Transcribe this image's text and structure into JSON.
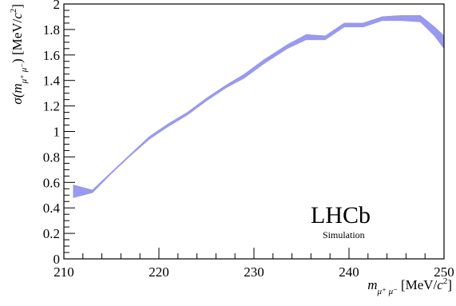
{
  "chart_data": {
    "type": "area",
    "xlim": [
      210,
      250
    ],
    "ylim": [
      0,
      2
    ],
    "x_ticks": [
      "210",
      "220",
      "230",
      "240",
      "250"
    ],
    "y_ticks": [
      "0",
      "0.2",
      "0.4",
      "0.6",
      "0.8",
      "1",
      "1.2",
      "1.4",
      "1.6",
      "1.8",
      "2"
    ],
    "xlabel": {
      "prefix": "m",
      "sub": "μ⁺ μ⁻",
      "unit_open": "[MeV/",
      "unit_base": "c",
      "unit_exp": "2",
      "unit_close": "]"
    },
    "ylabel": {
      "prefix": "σ(m",
      "sub": "μ⁺ μ⁻",
      "close": ") [MeV/",
      "unit_base": "c",
      "unit_exp": "2",
      "unit_close": "]"
    },
    "watermark": {
      "title": "LHCb",
      "subtitle": "Simulation"
    },
    "band_color": "#9999ee",
    "series": [
      {
        "x": [
          211,
          213,
          215,
          217,
          219,
          221,
          223,
          225,
          227,
          229,
          231,
          233.5,
          235.5,
          237.5,
          239.5,
          241.5,
          243.5,
          245.5,
          247.5,
          249,
          250
        ],
        "lower": [
          0.48,
          0.52,
          0.67,
          0.81,
          0.94,
          1.04,
          1.13,
          1.24,
          1.34,
          1.42,
          1.53,
          1.65,
          1.72,
          1.72,
          1.82,
          1.82,
          1.87,
          1.87,
          1.86,
          1.75,
          1.65
        ],
        "upper": [
          0.58,
          0.54,
          0.68,
          0.82,
          0.96,
          1.06,
          1.15,
          1.26,
          1.36,
          1.45,
          1.56,
          1.68,
          1.76,
          1.75,
          1.85,
          1.85,
          1.9,
          1.91,
          1.91,
          1.82,
          1.75
        ]
      }
    ]
  }
}
